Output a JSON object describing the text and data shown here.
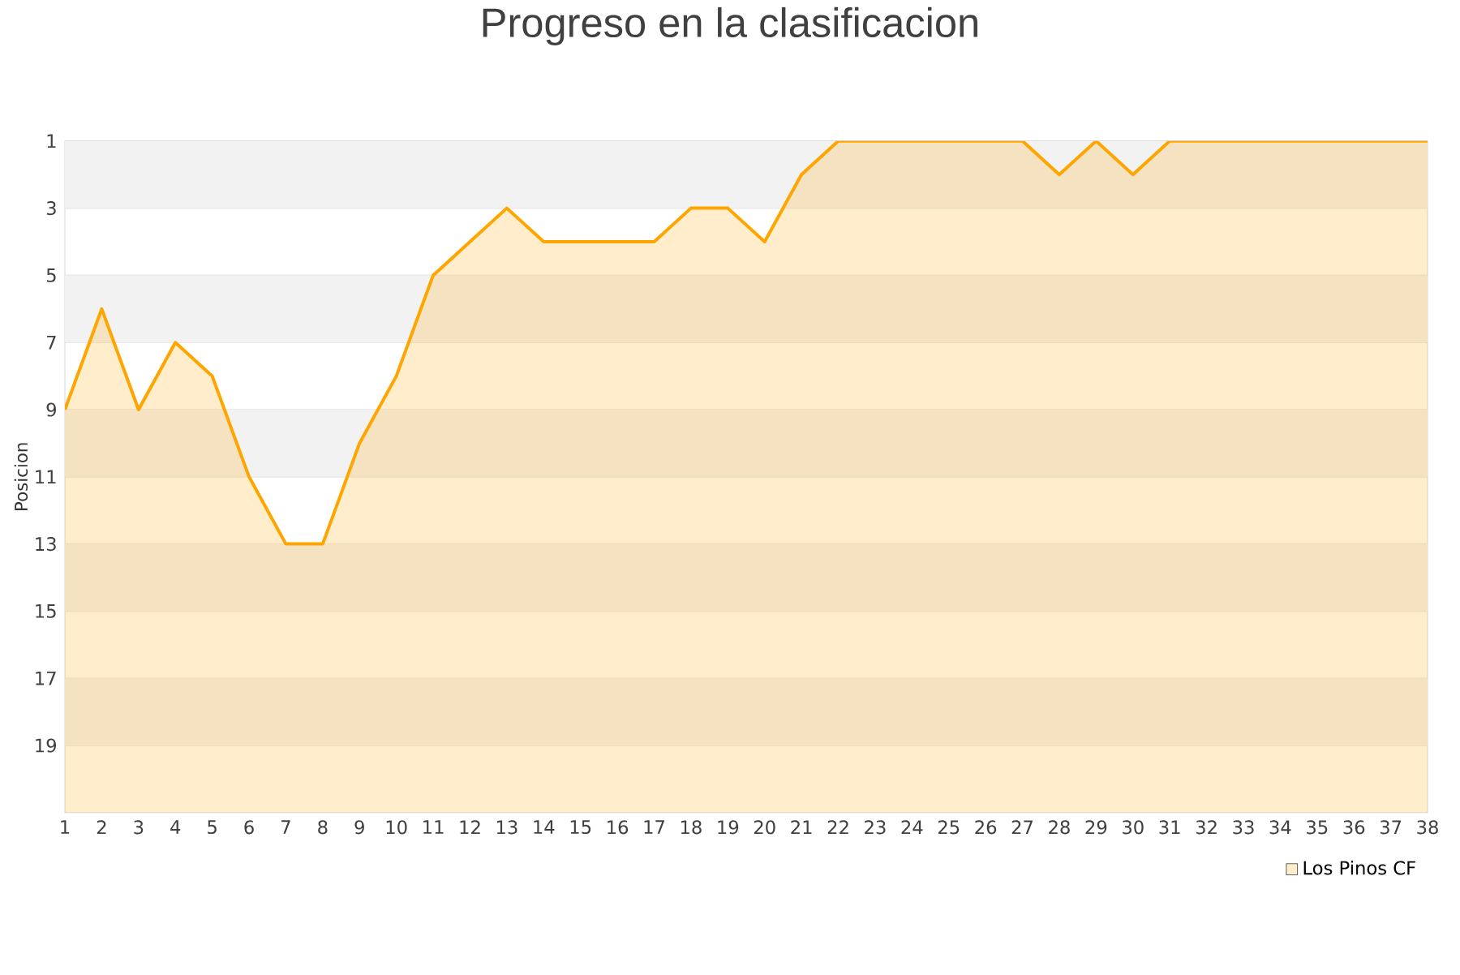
{
  "chart_data": {
    "type": "area",
    "title": "Progreso en la clasificacion",
    "ylabel": "Posicion",
    "x": [
      1,
      2,
      3,
      4,
      5,
      6,
      7,
      8,
      9,
      10,
      11,
      12,
      13,
      14,
      15,
      16,
      17,
      18,
      19,
      20,
      21,
      22,
      23,
      24,
      25,
      26,
      27,
      28,
      29,
      30,
      31,
      32,
      33,
      34,
      35,
      36,
      37,
      38
    ],
    "series": [
      {
        "name": "Los Pinos CF",
        "color": "#ffa500",
        "values": [
          9,
          6,
          9,
          7,
          8,
          11,
          13,
          13,
          10,
          8,
          5,
          4,
          3,
          4,
          4,
          4,
          4,
          3,
          3,
          4,
          2,
          1,
          1,
          1,
          1,
          1,
          1,
          2,
          1,
          2,
          1,
          1,
          1,
          1,
          1,
          1,
          1,
          1
        ]
      }
    ],
    "xlim": [
      1,
      38
    ],
    "xticks": [
      1,
      2,
      3,
      4,
      5,
      6,
      7,
      8,
      9,
      10,
      11,
      12,
      13,
      14,
      15,
      16,
      17,
      18,
      19,
      20,
      21,
      22,
      23,
      24,
      25,
      26,
      27,
      28,
      29,
      30,
      31,
      32,
      33,
      34,
      35,
      36,
      37,
      38
    ],
    "ylim": [
      21,
      1
    ],
    "yticks": [
      1,
      3,
      5,
      7,
      9,
      11,
      13,
      15,
      17,
      19
    ],
    "bands": [
      {
        "axis": "y",
        "from": 1,
        "to": 3,
        "color": "#f2f2f2"
      },
      {
        "axis": "y",
        "from": 5,
        "to": 7,
        "color": "#f2f2f2"
      },
      {
        "axis": "y",
        "from": 9,
        "to": 11,
        "color": "#f2f2f2"
      },
      {
        "axis": "y",
        "from": 13,
        "to": 15,
        "color": "#f2f2f2"
      },
      {
        "axis": "y",
        "from": 17,
        "to": 19,
        "color": "#f2f2f2"
      }
    ],
    "grid": "y",
    "legend": "bottom right",
    "marker": "none",
    "line_style": "solid"
  }
}
